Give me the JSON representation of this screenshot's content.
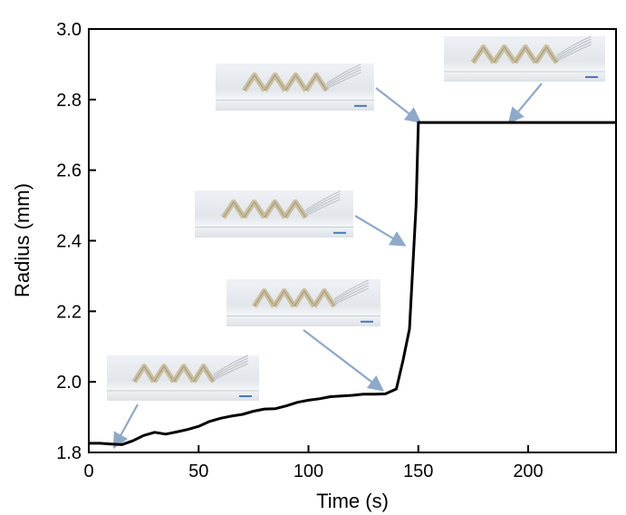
{
  "chart_data": {
    "type": "line",
    "xlabel": "Time (s)",
    "ylabel": "Radius (mm)",
    "xlim": [
      0,
      240
    ],
    "ylim": [
      1.8,
      3.0
    ],
    "xticks": [
      0,
      50,
      100,
      150,
      200
    ],
    "yticks": [
      1.8,
      2.0,
      2.2,
      2.4,
      2.6,
      2.8,
      3.0
    ],
    "xtick_labels": [
      "0",
      "50",
      "100",
      "150",
      "200"
    ],
    "ytick_labels": [
      "1.8",
      "2.0",
      "2.2",
      "2.4",
      "2.6",
      "2.8",
      "3.0"
    ],
    "grid": false,
    "legend": "none",
    "line_color": "#000000",
    "arrow_color": "#8fa9c8",
    "series": [
      {
        "x": [
          0,
          5,
          10,
          15,
          20,
          25,
          30,
          35,
          40,
          45,
          50,
          55,
          60,
          65,
          70,
          75,
          80,
          85,
          90,
          95,
          100,
          105,
          110,
          115,
          120,
          125,
          130,
          135,
          140,
          143,
          146,
          149,
          150,
          240
        ],
        "values": [
          1.826,
          1.826,
          1.824,
          1.822,
          1.833,
          1.848,
          1.857,
          1.852,
          1.858,
          1.865,
          1.874,
          1.888,
          1.897,
          1.903,
          1.908,
          1.917,
          1.923,
          1.924,
          1.932,
          1.942,
          1.948,
          1.952,
          1.958,
          1.96,
          1.962,
          1.965,
          1.965,
          1.966,
          1.98,
          2.06,
          2.15,
          2.5,
          2.735,
          2.735
        ]
      }
    ],
    "annotations": [
      {
        "type": "photo-inset",
        "points_to": [
          12,
          1.82
        ]
      },
      {
        "type": "photo-inset",
        "points_to": [
          133,
          1.98
        ]
      },
      {
        "type": "photo-inset",
        "points_to": [
          143,
          2.39
        ]
      },
      {
        "type": "photo-inset",
        "points_to": [
          150,
          2.74
        ]
      },
      {
        "type": "photo-inset",
        "points_to": [
          192,
          2.74
        ]
      }
    ]
  }
}
